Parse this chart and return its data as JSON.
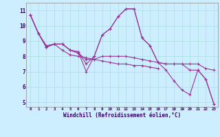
{
  "background_color": "#cceeff",
  "line_color": "#993399",
  "marker": "+",
  "xlabel": "Windchill (Refroidissement éolien,°C)",
  "ylabel_ticks": [
    5,
    6,
    7,
    8,
    9,
    10,
    11
  ],
  "xtick_labels": [
    "0",
    "1",
    "2",
    "3",
    "4",
    "5",
    "6",
    "7",
    "8",
    "9",
    "10",
    "11",
    "12",
    "13",
    "14",
    "15",
    "16",
    "17",
    "18",
    "19",
    "20",
    "21",
    "22",
    "23"
  ],
  "xlim": [
    -0.5,
    23.5
  ],
  "ylim": [
    4.7,
    11.5
  ],
  "grid_color": "#aadddd",
  "series": [
    {
      "x": [
        0,
        1,
        2,
        3,
        4,
        5,
        6,
        7,
        8,
        9,
        10,
        11,
        12,
        13,
        14,
        15,
        16,
        17,
        18,
        19,
        20,
        21,
        22,
        23
      ],
      "y": [
        10.7,
        9.5,
        8.7,
        8.8,
        8.8,
        8.4,
        8.3,
        7.5,
        8.0,
        9.4,
        9.8,
        10.6,
        11.1,
        11.1,
        9.2,
        8.7,
        7.6,
        7.5,
        7.5,
        7.5,
        7.1,
        7.1,
        6.5,
        4.9
      ]
    },
    {
      "x": [
        0,
        1,
        2,
        3,
        4,
        5,
        6,
        7,
        8,
        9,
        10,
        11,
        12,
        13,
        14,
        15,
        16,
        17,
        18,
        19,
        20,
        21,
        22,
        23
      ],
      "y": [
        10.7,
        9.5,
        8.6,
        8.8,
        8.8,
        8.4,
        8.2,
        7.8,
        7.8,
        8.0,
        8.0,
        8.0,
        8.0,
        7.9,
        7.8,
        7.7,
        7.6,
        7.5,
        7.5,
        7.5,
        7.5,
        7.5,
        7.2,
        7.1
      ]
    },
    {
      "x": [
        0,
        1,
        2,
        3,
        4,
        5,
        6,
        7,
        8,
        9,
        10,
        11,
        12,
        13,
        14,
        15,
        16
      ],
      "y": [
        10.7,
        9.5,
        8.6,
        8.8,
        8.4,
        8.1,
        8.0,
        7.9,
        7.8,
        7.7,
        7.6,
        7.5,
        7.5,
        7.4,
        7.4,
        7.3,
        7.2
      ]
    },
    {
      "x": [
        0,
        1,
        2,
        3,
        4,
        5,
        6,
        7,
        8,
        9,
        10,
        11,
        12,
        13,
        14,
        15,
        16,
        17,
        18,
        19,
        20,
        21,
        22,
        23
      ],
      "y": [
        10.7,
        9.5,
        8.6,
        8.8,
        8.8,
        8.4,
        8.3,
        7.0,
        8.0,
        9.4,
        9.8,
        10.6,
        11.1,
        11.1,
        9.2,
        8.7,
        7.6,
        7.1,
        6.4,
        5.8,
        5.5,
        7.1,
        6.5,
        4.9
      ]
    }
  ]
}
